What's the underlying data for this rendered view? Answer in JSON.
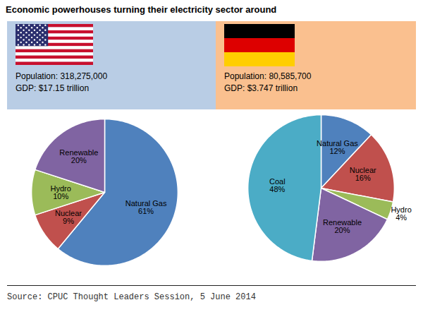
{
  "title": "Economic powerhouses turning their electricity sector around",
  "source": "Source: CPUC Thought Leaders Session, 5 June 2014",
  "chart_data": [
    {
      "type": "pie",
      "annotations": [
        "Population: 318,275,000",
        "GDP: $17.15 trillion"
      ],
      "categories": [
        "Natural Gas",
        "Nuclear",
        "Hydro",
        "Renewable"
      ],
      "values": [
        61,
        9,
        10,
        20
      ],
      "value_labels": [
        "61%",
        "9%",
        "10%",
        "20%"
      ],
      "colors": [
        "#4f81bd",
        "#c0504d",
        "#9bbb59",
        "#8064a2"
      ],
      "data_labels": true
    },
    {
      "type": "pie",
      "annotations": [
        "Population: 80,585,700",
        "GDP: $3.747 trillion"
      ],
      "categories": [
        "Natural Gas",
        "Nuclear",
        "Hydro",
        "Renewable",
        "Coal"
      ],
      "values": [
        12,
        16,
        4,
        20,
        48
      ],
      "value_labels": [
        "12%",
        "16%",
        "4%",
        "20%",
        "48%"
      ],
      "colors": [
        "#4f81bd",
        "#c0504d",
        "#9bbb59",
        "#8064a2",
        "#4bacc6"
      ],
      "data_labels": true
    }
  ]
}
